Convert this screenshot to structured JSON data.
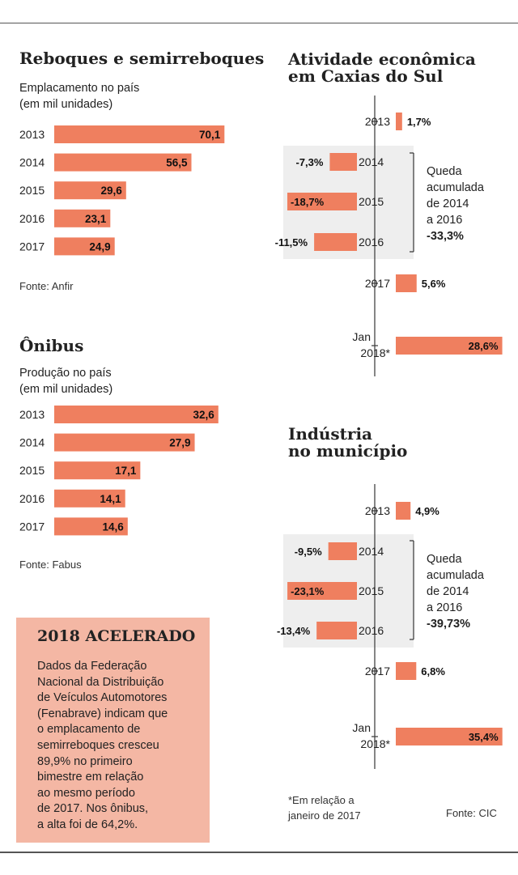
{
  "colors": {
    "bar": "#ef7f5f",
    "box": "#f4b7a4",
    "shade": "#eeeeee",
    "axis": "#444444"
  },
  "reboques": {
    "title": "Reboques e semirreboques",
    "subtitle_line1": "Emplacamento no país",
    "subtitle_line2": "(em mil unidades)",
    "source": "Fonte: Anfir"
  },
  "onibus": {
    "title": "Ônibus",
    "subtitle_line1": "Produção no país",
    "subtitle_line2": "(em mil unidades)",
    "source": "Fonte: Fabus"
  },
  "atividade": {
    "title_line1": "Atividade econômica",
    "title_line2": "em Caxias do Sul",
    "queda_text": "Queda\nacumulada\nde 2014\na 2016",
    "queda_value": "-33,3%"
  },
  "industria": {
    "title_line1": "Indústria",
    "title_line2": "no município",
    "queda_text": "Queda\nacumulada\nde 2014\na 2016",
    "queda_value": "-39,73%"
  },
  "box": {
    "title": "2018 ACELERADO",
    "text": "Dados da Federação\nNacional da Distribuição\nde Veículos Automotores\n(Fenabrave) indicam que\no emplacamento de\nsemirreboques cresceu\n89,9% no primeiro\nbimestre em relação\nao mesmo período\nde 2017. Nos ônibus,\na alta foi de 64,2%."
  },
  "footnote": "*Em relação a\njaneiro de 2017",
  "source_right": "Fonte: CIC",
  "chart_data": [
    {
      "type": "bar",
      "orientation": "horizontal",
      "title": "Reboques e semirreboques",
      "subtitle": "Emplacamento no país (em mil unidades)",
      "categories": [
        "2013",
        "2014",
        "2015",
        "2016",
        "2017"
      ],
      "values": [
        70.1,
        56.5,
        29.6,
        23.1,
        24.9
      ],
      "labels": [
        "70,1",
        "56,5",
        "29,6",
        "23,1",
        "24,9"
      ]
    },
    {
      "type": "bar",
      "orientation": "horizontal",
      "title": "Ônibus",
      "subtitle": "Produção no país (em mil unidades)",
      "categories": [
        "2013",
        "2014",
        "2015",
        "2016",
        "2017"
      ],
      "values": [
        32.6,
        27.9,
        17.1,
        14.1,
        14.6
      ],
      "labels": [
        "32,6",
        "27,9",
        "17,1",
        "14,1",
        "14,6"
      ]
    },
    {
      "type": "bar",
      "orientation": "diverging",
      "title": "Atividade econômica em Caxias do Sul",
      "categories": [
        "2013",
        "2014",
        "2015",
        "2016",
        "2017",
        "Jan 2018*"
      ],
      "values": [
        1.7,
        -7.3,
        -18.7,
        -11.5,
        5.6,
        28.6
      ],
      "labels": [
        "1,7%",
        "-7,3%",
        "-18,7%",
        "-11,5%",
        "5,6%",
        "28,6%"
      ]
    },
    {
      "type": "bar",
      "orientation": "diverging",
      "title": "Indústria no município",
      "categories": [
        "2013",
        "2014",
        "2015",
        "2016",
        "2017",
        "Jan 2018*"
      ],
      "values": [
        4.9,
        -9.5,
        -23.1,
        -13.4,
        6.8,
        35.4
      ],
      "labels": [
        "4,9%",
        "-9,5%",
        "-23,1%",
        "-13,4%",
        "6,8%",
        "35,4%"
      ]
    }
  ]
}
